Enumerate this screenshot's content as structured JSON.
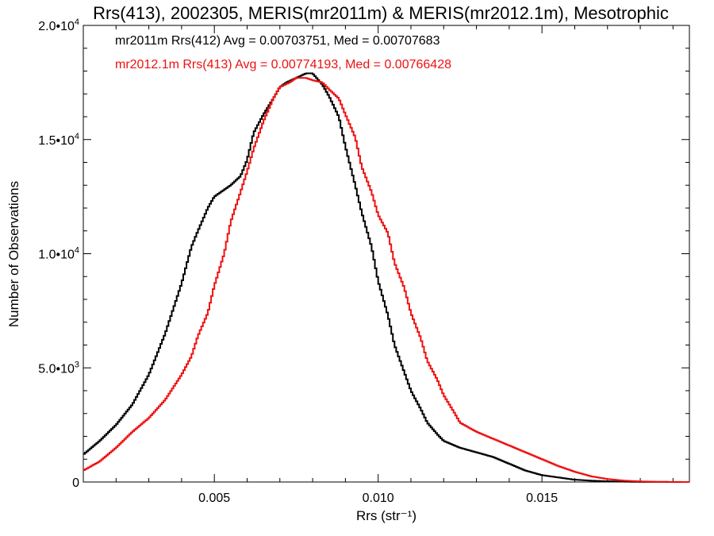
{
  "chart_data": {
    "type": "line",
    "title": "Rrs(413), 2002305, MERIS(mr2011m) & MERIS(mr2012.1m), Mesotrophic",
    "xlabel": "Rrs (str⁻¹)",
    "ylabel": "Number of Observations",
    "xlim": [
      0.001,
      0.0195
    ],
    "ylim": [
      0,
      20000
    ],
    "x_ticks": [
      {
        "value": 0.005,
        "label": "0.005"
      },
      {
        "value": 0.01,
        "label": "0.010"
      },
      {
        "value": 0.015,
        "label": "0.015"
      }
    ],
    "y_ticks": [
      {
        "value": 0,
        "mantissa": "0",
        "exponent": ""
      },
      {
        "value": 5000,
        "mantissa": "5.0•10",
        "exponent": "3"
      },
      {
        "value": 10000,
        "mantissa": "1.0•10",
        "exponent": "4"
      },
      {
        "value": 15000,
        "mantissa": "1.5•10",
        "exponent": "4"
      },
      {
        "value": 20000,
        "mantissa": "2.0•10",
        "exponent": "4"
      }
    ],
    "grid": false,
    "step_style": "histogram",
    "series": [
      {
        "name": "mr2011m",
        "color": "#000000",
        "legend_text": "mr2011m Rrs(412) Avg = 0.00703751, Med = 0.00707683",
        "points": [
          [
            0.001,
            1200
          ],
          [
            0.0015,
            1800
          ],
          [
            0.002,
            2500
          ],
          [
            0.0025,
            3400
          ],
          [
            0.003,
            4700
          ],
          [
            0.0035,
            6500
          ],
          [
            0.004,
            8700
          ],
          [
            0.0043,
            10300
          ],
          [
            0.0045,
            11000
          ],
          [
            0.0048,
            12000
          ],
          [
            0.005,
            12500
          ],
          [
            0.0055,
            13000
          ],
          [
            0.0058,
            13400
          ],
          [
            0.006,
            14100
          ],
          [
            0.0062,
            15300
          ],
          [
            0.0065,
            16100
          ],
          [
            0.0068,
            16800
          ],
          [
            0.007,
            17300
          ],
          [
            0.0072,
            17500
          ],
          [
            0.0075,
            17700
          ],
          [
            0.0078,
            17900
          ],
          [
            0.008,
            17900
          ],
          [
            0.0083,
            17400
          ],
          [
            0.0085,
            16900
          ],
          [
            0.0088,
            16000
          ],
          [
            0.009,
            14700
          ],
          [
            0.0093,
            13000
          ],
          [
            0.0095,
            11800
          ],
          [
            0.0098,
            10300
          ],
          [
            0.01,
            8800
          ],
          [
            0.0103,
            7300
          ],
          [
            0.0105,
            6000
          ],
          [
            0.0108,
            4800
          ],
          [
            0.011,
            4000
          ],
          [
            0.0113,
            3200
          ],
          [
            0.0115,
            2600
          ],
          [
            0.0118,
            2100
          ],
          [
            0.012,
            1800
          ],
          [
            0.0125,
            1500
          ],
          [
            0.013,
            1300
          ],
          [
            0.0135,
            1100
          ],
          [
            0.014,
            800
          ],
          [
            0.0145,
            500
          ],
          [
            0.015,
            300
          ],
          [
            0.0155,
            200
          ],
          [
            0.016,
            100
          ],
          [
            0.0165,
            60
          ],
          [
            0.017,
            30
          ],
          [
            0.0175,
            15
          ],
          [
            0.018,
            5
          ],
          [
            0.0195,
            0
          ]
        ]
      },
      {
        "name": "mr2012.1m",
        "color": "#ee1111",
        "legend_text": "mr2012.1m Rrs(413) Avg = 0.00774193, Med = 0.00766428",
        "points": [
          [
            0.001,
            500
          ],
          [
            0.0015,
            900
          ],
          [
            0.002,
            1500
          ],
          [
            0.0025,
            2200
          ],
          [
            0.003,
            2800
          ],
          [
            0.0035,
            3600
          ],
          [
            0.004,
            4700
          ],
          [
            0.0043,
            5500
          ],
          [
            0.0045,
            6400
          ],
          [
            0.0048,
            7400
          ],
          [
            0.005,
            8600
          ],
          [
            0.0053,
            10000
          ],
          [
            0.0055,
            11400
          ],
          [
            0.0058,
            12700
          ],
          [
            0.006,
            13600
          ],
          [
            0.0062,
            14600
          ],
          [
            0.0065,
            15800
          ],
          [
            0.0068,
            16800
          ],
          [
            0.007,
            17300
          ],
          [
            0.0073,
            17500
          ],
          [
            0.0075,
            17700
          ],
          [
            0.0078,
            17700
          ],
          [
            0.008,
            17600
          ],
          [
            0.0083,
            17500
          ],
          [
            0.0085,
            17200
          ],
          [
            0.0088,
            16800
          ],
          [
            0.009,
            16100
          ],
          [
            0.0093,
            15100
          ],
          [
            0.0095,
            13800
          ],
          [
            0.0098,
            12700
          ],
          [
            0.01,
            11700
          ],
          [
            0.0103,
            10900
          ],
          [
            0.0105,
            9600
          ],
          [
            0.0108,
            8500
          ],
          [
            0.011,
            7400
          ],
          [
            0.0113,
            6300
          ],
          [
            0.0115,
            5300
          ],
          [
            0.0118,
            4500
          ],
          [
            0.012,
            3800
          ],
          [
            0.0123,
            3100
          ],
          [
            0.0125,
            2600
          ],
          [
            0.013,
            2200
          ],
          [
            0.0135,
            1900
          ],
          [
            0.014,
            1600
          ],
          [
            0.0145,
            1300
          ],
          [
            0.015,
            1000
          ],
          [
            0.0155,
            700
          ],
          [
            0.016,
            450
          ],
          [
            0.0165,
            250
          ],
          [
            0.017,
            130
          ],
          [
            0.0175,
            60
          ],
          [
            0.018,
            25
          ],
          [
            0.0185,
            10
          ],
          [
            0.0195,
            0
          ]
        ]
      }
    ]
  }
}
